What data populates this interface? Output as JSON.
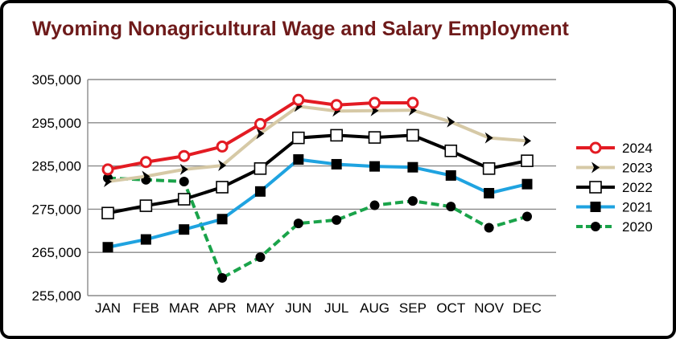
{
  "chart_data": {
    "type": "line",
    "title": "Wyoming Nonagricultural Wage and Salary Employment",
    "xlabel": "",
    "ylabel": "",
    "categories": [
      "JAN",
      "FEB",
      "MAR",
      "APR",
      "MAY",
      "JUN",
      "JUL",
      "AUG",
      "SEP",
      "OCT",
      "NOV",
      "DEC"
    ],
    "ylim": [
      255000,
      305000
    ],
    "yticks": [
      255000,
      265000,
      275000,
      285000,
      295000,
      305000
    ],
    "ytick_labels": [
      "255,000",
      "265,000",
      "275,000",
      "285,000",
      "295,000",
      "305,000"
    ],
    "grid": "horizontal",
    "legend_position": "right",
    "series": [
      {
        "name": "2024",
        "color": "#e31b23",
        "marker": "open-circle",
        "values": [
          284200,
          285900,
          287300,
          289500,
          294700,
          300300,
          299100,
          299600,
          299600,
          null,
          null,
          null
        ]
      },
      {
        "name": "2023",
        "color": "#d6c9a6",
        "marker": "chevron-right",
        "values": [
          281400,
          282600,
          284200,
          285100,
          292500,
          298800,
          297700,
          297800,
          297900,
          295200,
          291500,
          290800
        ]
      },
      {
        "name": "2022",
        "color": "#000000",
        "marker": "open-square",
        "values": [
          274100,
          275800,
          277300,
          280100,
          284400,
          291500,
          292100,
          291600,
          292100,
          288500,
          284400,
          286200
        ]
      },
      {
        "name": "2021",
        "color": "#1fa3e0",
        "marker": "filled-square",
        "values": [
          266200,
          268000,
          270300,
          272700,
          279100,
          286500,
          285400,
          284900,
          284700,
          282800,
          278700,
          280800
        ]
      },
      {
        "name": "2020",
        "color": "#1aa34a",
        "marker": "filled-circle",
        "values": [
          282200,
          281800,
          281400,
          259100,
          263900,
          271700,
          272500,
          275900,
          276900,
          275600,
          270700,
          273300
        ]
      }
    ]
  }
}
